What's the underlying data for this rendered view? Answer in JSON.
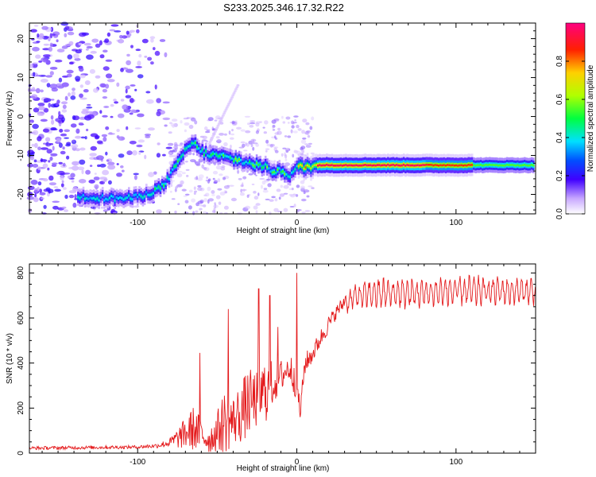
{
  "title": "S233.2025.346.17.32.R22",
  "chart_data": [
    {
      "type": "heatmap",
      "xlabel": "Height of straight line (km)",
      "ylabel": "Frequency (Hz)",
      "xlim": [
        -168,
        150
      ],
      "ylim": [
        -25,
        24
      ],
      "xticks": [
        -100,
        0,
        100
      ],
      "yticks": [
        -20,
        -10,
        0,
        10,
        20
      ],
      "ridge": {
        "x": [
          -135,
          -120,
          -105,
          -95,
          -85,
          -80,
          -75,
          -70,
          -65,
          -60,
          -55,
          -50,
          -40,
          -30,
          -20,
          -15,
          -10,
          -5,
          0,
          5,
          10,
          20,
          50,
          100,
          150
        ],
        "y": [
          -20.5,
          -21,
          -21,
          -20,
          -18,
          -15,
          -12,
          -8,
          -7,
          -9,
          -10,
          -10,
          -11,
          -12,
          -13,
          -14,
          -14,
          -15,
          -13,
          -13,
          -12.5,
          -12.5,
          -12.5,
          -12.5,
          -12.5
        ]
      },
      "colorbar": {
        "label": "Normalized spectral amplitude",
        "range": [
          0,
          1
        ],
        "ticks": [
          "0.0",
          "0.2",
          "0.4",
          "0.6",
          "0.8"
        ],
        "stops": [
          {
            "v": 0.0,
            "c": "#ffffff"
          },
          {
            "v": 0.08,
            "c": "#c8a8ff"
          },
          {
            "v": 0.18,
            "c": "#4000ff"
          },
          {
            "v": 0.28,
            "c": "#0050ff"
          },
          {
            "v": 0.38,
            "c": "#00e0ff"
          },
          {
            "v": 0.5,
            "c": "#00ff40"
          },
          {
            "v": 0.62,
            "c": "#b0ff00"
          },
          {
            "v": 0.74,
            "c": "#ffd000"
          },
          {
            "v": 0.86,
            "c": "#ff2000"
          },
          {
            "v": 1.0,
            "c": "#ff0080"
          }
        ]
      }
    },
    {
      "type": "line",
      "xlabel": "Height of straight line (km)",
      "ylabel": "SNR (10 * v/v)",
      "xlim": [
        -168,
        150
      ],
      "ylim": [
        0,
        840
      ],
      "xticks": [
        -100,
        0,
        100
      ],
      "yticks": [
        0,
        200,
        400,
        600,
        800
      ],
      "color": "#e41a1c",
      "envelope": {
        "x": [
          -168,
          -100,
          -88,
          -80,
          -72,
          -65,
          -60,
          -55,
          -50,
          -45,
          -40,
          -35,
          -30,
          -25,
          -20,
          -15,
          -10,
          -5,
          0,
          2,
          5,
          10,
          15,
          20,
          25,
          30,
          35,
          40,
          50,
          60,
          80,
          100,
          120,
          150
        ],
        "base": [
          20,
          25,
          30,
          40,
          60,
          80,
          60,
          40,
          70,
          100,
          110,
          140,
          180,
          200,
          230,
          280,
          320,
          360,
          300,
          160,
          380,
          430,
          500,
          560,
          620,
          660,
          690,
          700,
          710,
          710,
          710,
          720,
          720,
          720
        ],
        "amp": [
          15,
          15,
          20,
          40,
          120,
          200,
          150,
          120,
          180,
          300,
          220,
          280,
          300,
          250,
          300,
          200,
          150,
          120,
          200,
          80,
          100,
          80,
          80,
          80,
          60,
          70,
          80,
          90,
          100,
          100,
          100,
          100,
          100,
          90
        ]
      },
      "spikes": [
        {
          "x": -61,
          "y": 445
        },
        {
          "x": -43,
          "y": 640
        },
        {
          "x": -24,
          "y": 730
        },
        {
          "x": -17,
          "y": 700
        },
        {
          "x": -12,
          "y": 560
        },
        {
          "x": 0,
          "y": 800
        },
        {
          "x": 2,
          "y": 160
        }
      ]
    }
  ]
}
